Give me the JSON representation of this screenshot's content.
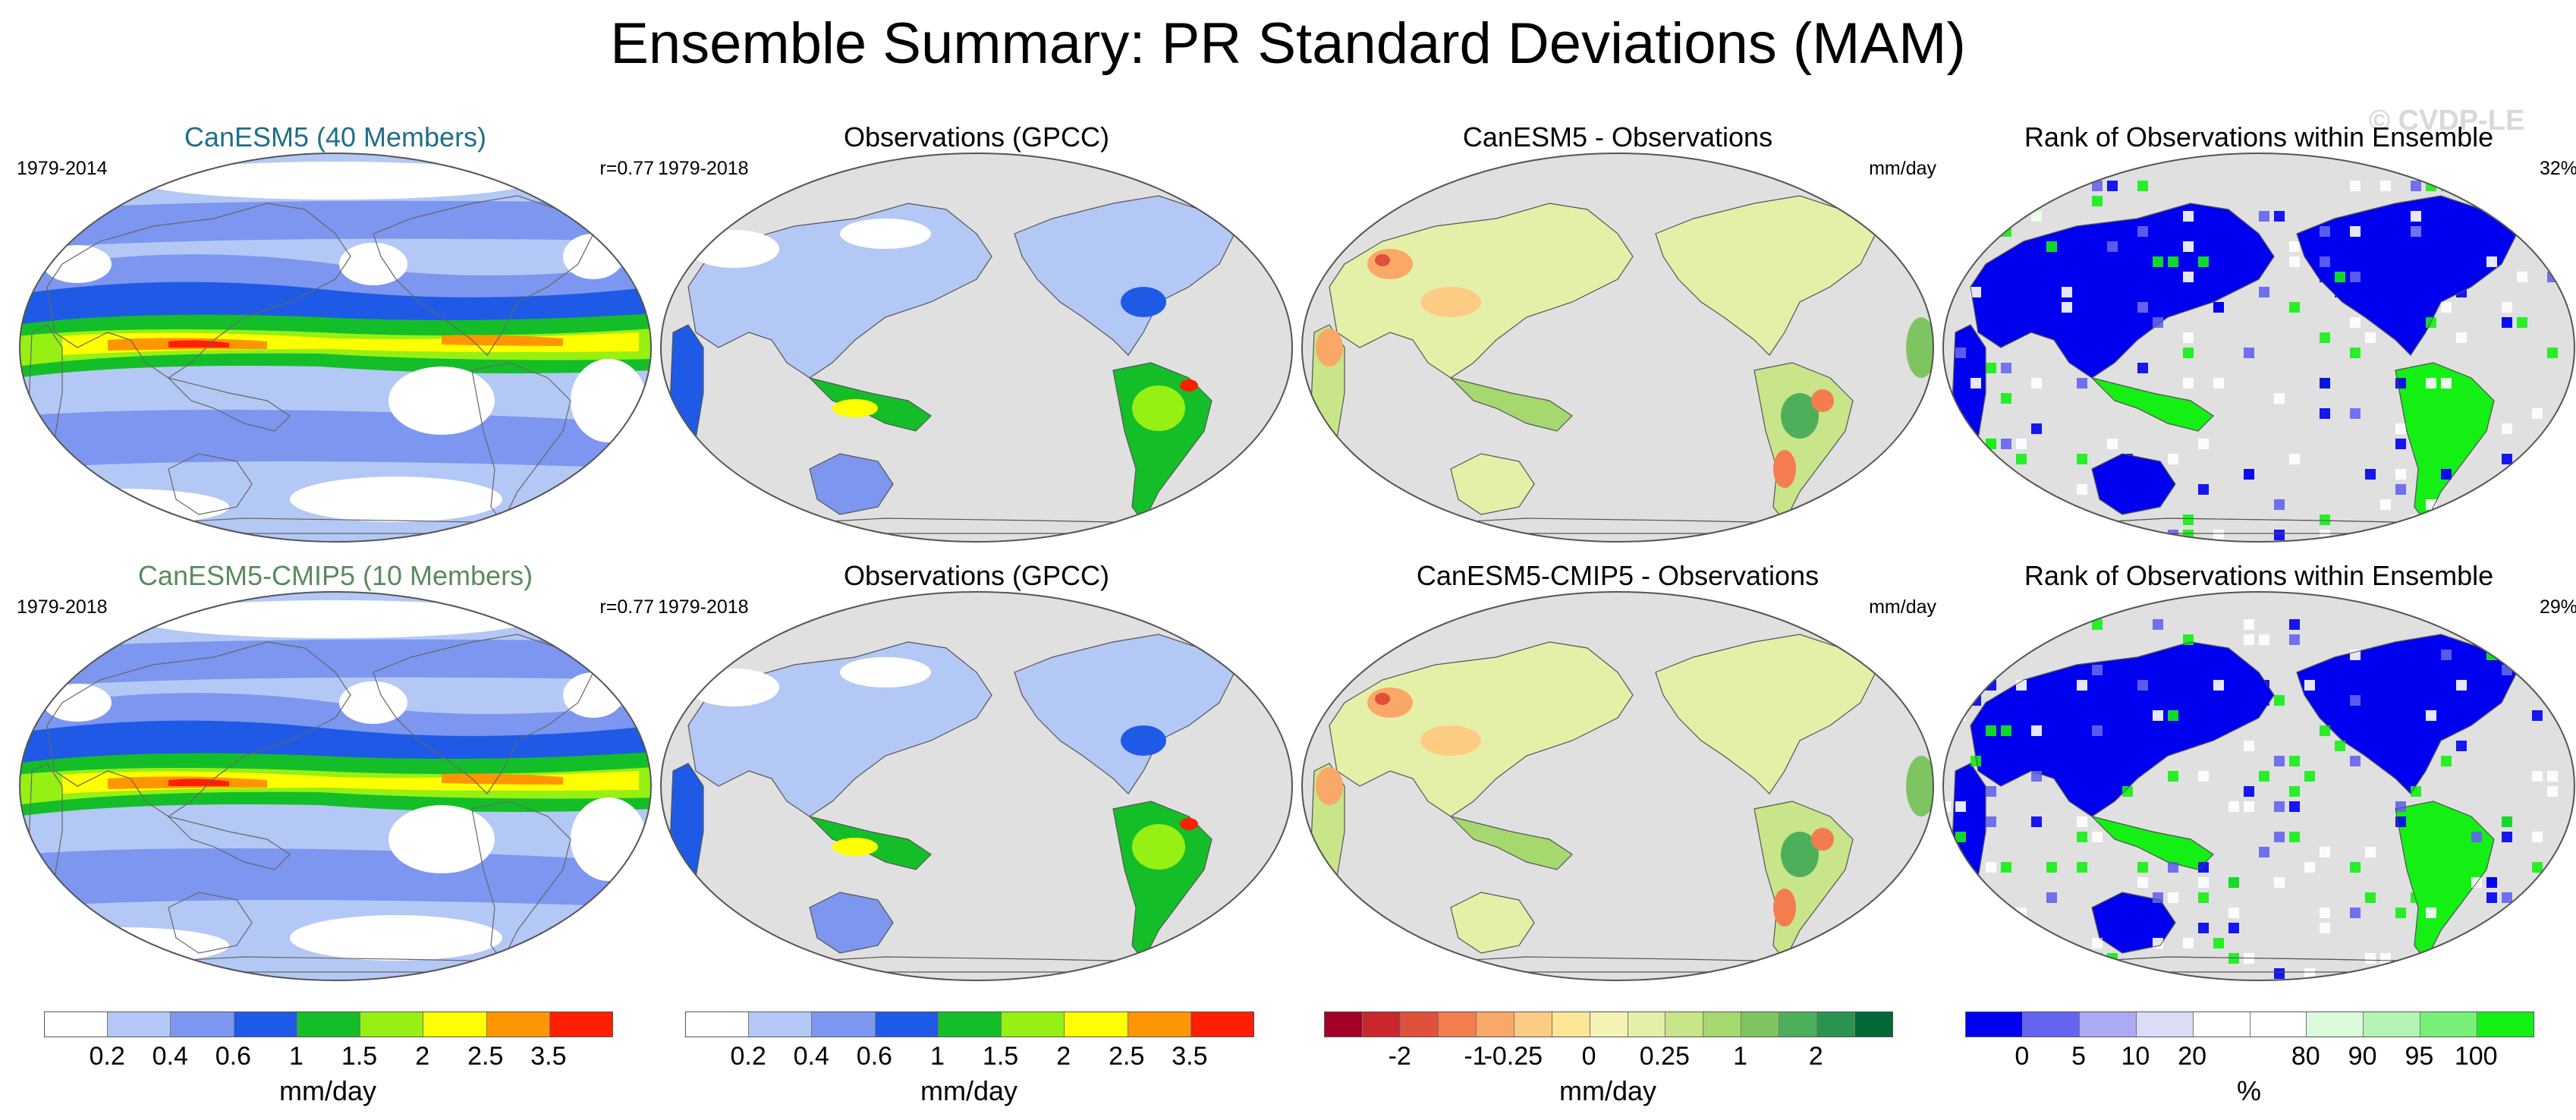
{
  "title": "Ensemble Summary: PR Standard Deviations (MAM)",
  "watermark": "© CVDP-LE",
  "colors": {
    "ocean_bg": "#e0e0e0",
    "land": "#ebebeb",
    "coast": "#555555",
    "text_blue": "#1f6e8c",
    "text_green": "#5b8a5e"
  },
  "rows": [
    {
      "cells": [
        {
          "title": "CanESM5 (40 Members)",
          "title_color": "#1f6e8c",
          "left": "1979-2014",
          "right": "r=0.77",
          "kind": "model"
        },
        {
          "title": "Observations (GPCC)",
          "title_color": "#000000",
          "left": "1979-2018",
          "right": "",
          "kind": "obs"
        },
        {
          "title": "CanESM5 - Observations",
          "title_color": "#000000",
          "left": "",
          "right": "mm/day",
          "kind": "diff"
        },
        {
          "title": "Rank of Observations within Ensemble",
          "title_color": "#000000",
          "left": "",
          "right": "32%",
          "kind": "rank"
        }
      ]
    },
    {
      "cells": [
        {
          "title": "CanESM5-CMIP5 (10 Members)",
          "title_color": "#5b8a5e",
          "left": "1979-2018",
          "right": "r=0.77",
          "kind": "model"
        },
        {
          "title": "Observations (GPCC)",
          "title_color": "#000000",
          "left": "1979-2018",
          "right": "",
          "kind": "obs"
        },
        {
          "title": "CanESM5-CMIP5 - Observations",
          "title_color": "#000000",
          "left": "",
          "right": "mm/day",
          "kind": "diff"
        },
        {
          "title": "Rank of Observations within Ensemble",
          "title_color": "#000000",
          "left": "",
          "right": "29%",
          "kind": "rank"
        }
      ]
    }
  ],
  "colorbars": [
    {
      "name": "colorbar-model",
      "colors": [
        "#ffffff",
        "#b4c8f5",
        "#7d96f0",
        "#1e5ae6",
        "#14be28",
        "#96f014",
        "#ffff00",
        "#ff9600",
        "#ff1e00"
      ],
      "ticks": [
        "0.2",
        "0.4",
        "0.6",
        "1",
        "1.5",
        "2",
        "2.5",
        "3.5"
      ],
      "unit": "mm/day"
    },
    {
      "name": "colorbar-obs",
      "colors": [
        "#ffffff",
        "#b4c8f5",
        "#7d96f0",
        "#1e5ae6",
        "#14be28",
        "#96f014",
        "#ffff00",
        "#ff9600",
        "#ff1e00"
      ],
      "ticks": [
        "0.2",
        "0.4",
        "0.6",
        "1",
        "1.5",
        "2",
        "2.5",
        "3.5"
      ],
      "unit": "mm/day"
    },
    {
      "name": "colorbar-diff",
      "colors": [
        "#a50026",
        "#c8282d",
        "#e0503a",
        "#f47d4f",
        "#f9a868",
        "#fdcc84",
        "#fce796",
        "#f5f3b4",
        "#e4f0a8",
        "#c8e58a",
        "#a5d86e",
        "#7ec561",
        "#4eaf5b",
        "#2a944f",
        "#006837"
      ],
      "ticks": [
        "-2",
        "-1",
        "-0.25",
        "0",
        "0.25",
        "1",
        "2"
      ],
      "unit": "mm/day"
    },
    {
      "name": "colorbar-rank",
      "colors": [
        "#0000f0",
        "#6464f0",
        "#aaaaf5",
        "#dcdcf8",
        "#ffffff",
        "#ffffff",
        "#dcfadc",
        "#b4f5b4",
        "#78f078",
        "#14f014"
      ],
      "ticks": [
        "0",
        "5",
        "10",
        "20",
        "80",
        "90",
        "95",
        "100"
      ],
      "unit": "%"
    }
  ]
}
